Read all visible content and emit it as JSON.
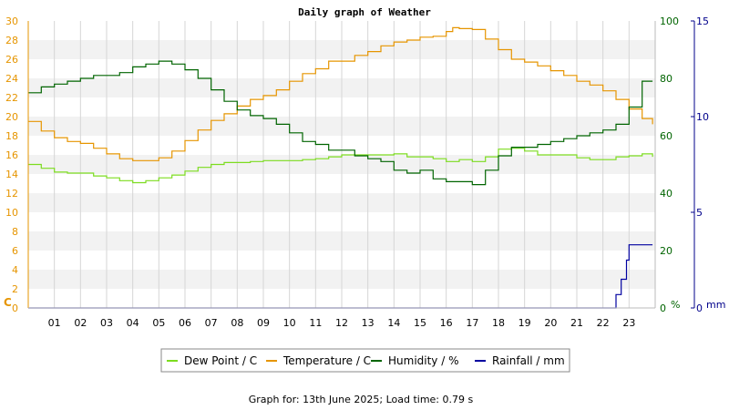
{
  "chart_data": {
    "type": "line",
    "title": "Daily graph of Weather",
    "footer": "Graph for: 13th June 2025; Load time: 0.79 s",
    "x_unit": "hour",
    "x_range": [
      0,
      24
    ],
    "x_tick_labels": [
      "01",
      "02",
      "03",
      "04",
      "05",
      "06",
      "07",
      "08",
      "09",
      "10",
      "11",
      "12",
      "13",
      "14",
      "15",
      "16",
      "17",
      "18",
      "19",
      "20",
      "21",
      "22",
      "23"
    ],
    "axes": {
      "left": {
        "unit_label": "C",
        "min": 0,
        "max": 30,
        "ticks": [
          0,
          2,
          4,
          6,
          8,
          10,
          12,
          14,
          16,
          18,
          20,
          22,
          24,
          26,
          28,
          30
        ],
        "color": "#e69500"
      },
      "humidity": {
        "unit_label": "%",
        "min": 0,
        "max": 100,
        "ticks": [
          0,
          20,
          40,
          60,
          80,
          100
        ],
        "color": "#006400"
      },
      "rain": {
        "unit_label": "mm",
        "min": 0,
        "max": 15,
        "ticks": [
          0,
          5,
          10,
          15
        ],
        "color": "#00008b"
      }
    },
    "grid": true,
    "legend_position": "bottom",
    "series": [
      {
        "name": "Dew Point / C",
        "axis": "left",
        "color": "#7cdc1f",
        "x": [
          0,
          0.5,
          1,
          1.5,
          2,
          2.5,
          3,
          3.5,
          4,
          4.5,
          5,
          5.5,
          6,
          6.5,
          7,
          7.5,
          8,
          8.5,
          9,
          9.5,
          10,
          10.5,
          11,
          11.5,
          12,
          12.5,
          13,
          13.5,
          14,
          14.5,
          15,
          15.5,
          16,
          16.5,
          17,
          17.5,
          18,
          18.5,
          19,
          19.5,
          20,
          20.5,
          21,
          21.5,
          22,
          22.5,
          23,
          23.5,
          23.9
        ],
        "y": [
          15,
          14.6,
          14.2,
          14.1,
          14.1,
          13.8,
          13.6,
          13.3,
          13.1,
          13.3,
          13.6,
          13.9,
          14.3,
          14.7,
          15,
          15.2,
          15.2,
          15.3,
          15.4,
          15.4,
          15.4,
          15.5,
          15.6,
          15.8,
          16,
          16,
          16,
          16,
          16.1,
          15.8,
          15.8,
          15.6,
          15.3,
          15.5,
          15.3,
          15.8,
          16.6,
          16.7,
          16.4,
          16,
          16,
          16,
          15.7,
          15.5,
          15.5,
          15.8,
          15.9,
          16.1,
          15.8
        ]
      },
      {
        "name": "Temperature / C",
        "axis": "left",
        "color": "#e69500",
        "x": [
          0,
          0.5,
          1,
          1.5,
          2,
          2.5,
          3,
          3.5,
          4,
          4.5,
          5,
          5.5,
          6,
          6.5,
          7,
          7.5,
          8,
          8.5,
          9,
          9.5,
          10,
          10.5,
          11,
          11.5,
          12,
          12.5,
          13,
          13.5,
          14,
          14.5,
          15,
          15.5,
          16,
          16.25,
          16.5,
          17,
          17.5,
          18,
          18.5,
          19,
          19.5,
          20,
          20.5,
          21,
          21.5,
          22,
          22.5,
          23,
          23.5,
          23.9
        ],
        "y": [
          19.5,
          18.5,
          17.8,
          17.4,
          17.2,
          16.7,
          16.1,
          15.6,
          15.4,
          15.4,
          15.7,
          16.4,
          17.5,
          18.6,
          19.6,
          20.3,
          21.1,
          21.8,
          22.2,
          22.8,
          23.7,
          24.5,
          25,
          25.8,
          25.8,
          26.4,
          26.8,
          27.4,
          27.8,
          28,
          28.3,
          28.4,
          28.9,
          29.3,
          29.2,
          29.1,
          28.1,
          27,
          26,
          25.7,
          25.3,
          24.8,
          24.3,
          23.7,
          23.3,
          22.7,
          21.8,
          20.8,
          19.8,
          19.2
        ]
      },
      {
        "name": "Humidity / %",
        "axis": "humidity",
        "color": "#006400",
        "x": [
          0,
          0.5,
          1,
          1.5,
          2,
          2.5,
          3,
          3.5,
          4,
          4.5,
          5,
          5.5,
          6,
          6.5,
          7,
          7.5,
          8,
          8.5,
          9,
          9.5,
          10,
          10.5,
          11,
          11.5,
          12,
          12.5,
          13,
          13.5,
          14,
          14.5,
          15,
          15.5,
          16,
          16.5,
          17,
          17.5,
          18,
          18.5,
          19,
          19.5,
          20,
          20.5,
          21,
          21.5,
          22,
          22.5,
          23,
          23.5,
          23.9
        ],
        "y": [
          75,
          77,
          78,
          79,
          80,
          81,
          81,
          82,
          84,
          85,
          86,
          85,
          83,
          80,
          76,
          72,
          69,
          67,
          66,
          64,
          61,
          58,
          57,
          55,
          55,
          53,
          52,
          51,
          48,
          47,
          48,
          45,
          44,
          44,
          43,
          48,
          53,
          56,
          56,
          57,
          58,
          59,
          60,
          61,
          62,
          64,
          70,
          79,
          79
        ]
      },
      {
        "name": "Rainfall / mm",
        "axis": "rain",
        "color": "#0000a0",
        "x": [
          0,
          22.3,
          22.5,
          22.7,
          22.9,
          23,
          23.9
        ],
        "y": [
          0,
          0,
          0.7,
          1.5,
          2.5,
          3.3,
          3.3
        ]
      }
    ]
  }
}
